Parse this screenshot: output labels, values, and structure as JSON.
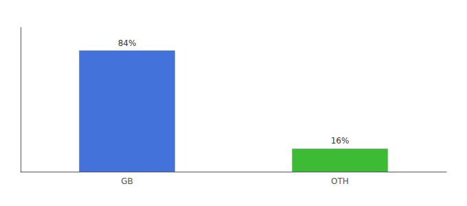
{
  "chart_data": {
    "type": "bar",
    "categories": [
      "GB",
      "OTH"
    ],
    "values": [
      84,
      16
    ],
    "value_labels": [
      "84%",
      "16%"
    ],
    "colors": [
      "#4472db",
      "#3dbb35"
    ],
    "ylim": [
      0,
      100
    ],
    "yticks": [],
    "grid": false,
    "data_labels": true,
    "tick_labels": "x"
  }
}
